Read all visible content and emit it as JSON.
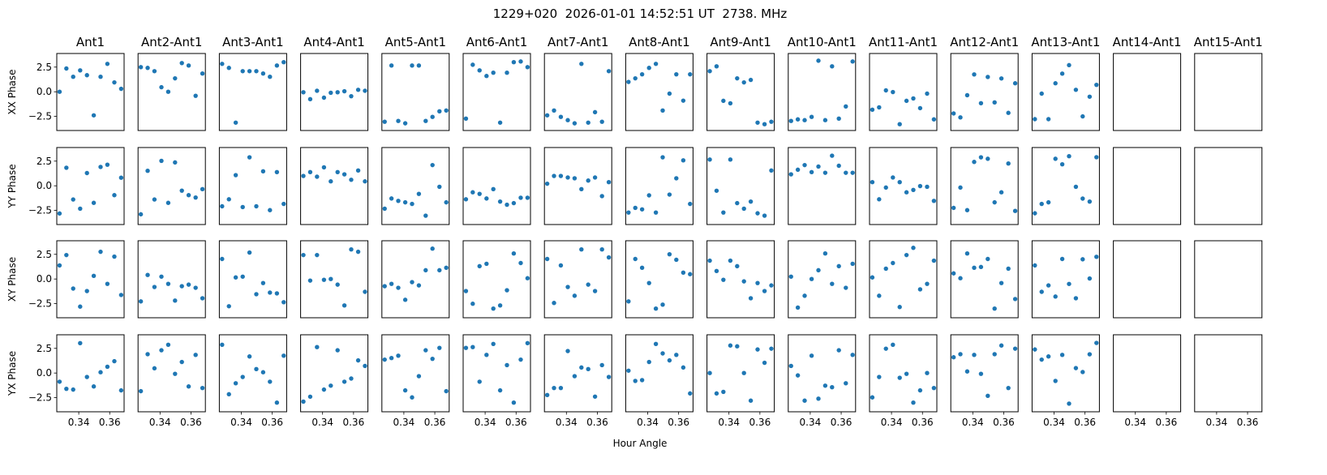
{
  "chart_data": {
    "type": "scatter",
    "title": "1229+020  2026-01-01 14:52:51 UT  2738. MHz",
    "xlabel": "Hour Angle",
    "columns": [
      "Ant1",
      "Ant2-Ant1",
      "Ant3-Ant1",
      "Ant4-Ant1",
      "Ant5-Ant1",
      "Ant6-Ant1",
      "Ant7-Ant1",
      "Ant8-Ant1",
      "Ant9-Ant1",
      "Ant10-Ant1",
      "Ant11-Ant1",
      "Ant12-Ant1",
      "Ant13-Ant1",
      "Ant14-Ant1",
      "Ant15-Ant1"
    ],
    "rows": [
      "XX",
      "YY",
      "XY",
      "YX"
    ],
    "ylabels": [
      "XX Phase",
      "YY Phase",
      "XY Phase",
      "YX Phase"
    ],
    "xlim": [
      0.3258,
      0.3693
    ],
    "ylim": [
      -3.93,
      3.88
    ],
    "xticks": [
      0.34,
      0.36
    ],
    "xtick_labels": [
      "0.34",
      "0.36"
    ],
    "yticks": [
      2.5,
      0.0,
      -2.5
    ],
    "ytick_labels": [
      "2.5",
      "0.0",
      "−2.5"
    ],
    "marker_color": "#1f77b4",
    "x": [
      0.3276,
      0.332,
      0.3364,
      0.3409,
      0.3453,
      0.3497,
      0.3541,
      0.3585,
      0.363,
      0.3674
    ],
    "series": {
      "XX": [
        [
          0.0,
          2.36,
          1.52,
          2.17,
          1.68,
          -2.39,
          1.52,
          2.83,
          0.95,
          0.3
        ],
        [
          2.5,
          2.42,
          2.09,
          0.46,
          0.0,
          1.36,
          2.91,
          2.66,
          -0.41,
          1.85
        ],
        [
          2.83,
          2.42,
          -3.13,
          2.09,
          2.09,
          2.09,
          1.85,
          1.52,
          2.66,
          3.0
        ],
        [
          -0.05,
          -0.75,
          0.1,
          -0.6,
          -0.1,
          -0.05,
          0.05,
          -0.45,
          0.2,
          0.1
        ],
        [
          -3.04,
          2.66,
          -2.96,
          -3.2,
          2.66,
          2.66,
          -2.96,
          -2.55,
          -1.98,
          -1.9
        ],
        [
          -2.72,
          2.74,
          2.17,
          1.6,
          1.93,
          -3.13,
          1.93,
          3.0,
          3.07,
          2.5
        ],
        [
          -2.39,
          -1.9,
          -2.55,
          -2.88,
          -3.2,
          2.83,
          -3.13,
          -2.07,
          -3.04,
          2.09
        ],
        [
          1.0,
          1.36,
          1.77,
          2.42,
          2.83,
          -1.9,
          -0.19,
          1.77,
          -0.9,
          1.77
        ],
        [
          2.09,
          2.58,
          -0.92,
          -1.17,
          1.36,
          0.95,
          1.2,
          -3.13,
          -3.29,
          -3.04
        ],
        [
          -2.96,
          -2.8,
          -2.88,
          -2.55,
          3.15,
          -2.88,
          2.58,
          -2.72,
          -1.49,
          3.07
        ],
        [
          -1.82,
          -1.58,
          0.14,
          -0.03,
          -3.29,
          -0.92,
          -0.68,
          -1.66,
          -0.19,
          -2.8
        ],
        [
          -2.2,
          -2.6,
          -0.35,
          1.76,
          -1.16,
          1.5,
          -1.08,
          1.35,
          -2.14,
          0.86
        ],
        [
          -2.78,
          -0.19,
          -2.78,
          0.86,
          1.84,
          2.7,
          0.2,
          -2.5,
          -0.5,
          0.7
        ],
        [],
        []
      ],
      "YY": [
        [
          -2.81,
          1.83,
          -1.39,
          -2.32,
          1.29,
          -1.73,
          1.91,
          2.14,
          -0.95,
          0.82
        ],
        [
          -2.89,
          1.52,
          -1.39,
          2.53,
          -1.73,
          2.37,
          -0.49,
          -0.95,
          -1.19,
          -0.34
        ],
        [
          -2.08,
          -1.37,
          1.08,
          -2.16,
          2.89,
          -2.08,
          1.47,
          -2.47,
          1.39,
          -1.84
        ],
        [
          1.0,
          1.39,
          0.92,
          1.87,
          0.45,
          1.39,
          1.16,
          0.61,
          1.55,
          0.45
        ],
        [
          -2.32,
          -1.29,
          -1.53,
          -1.68,
          -1.84,
          -0.82,
          -3.03,
          2.1,
          -0.1,
          -1.68
        ],
        [
          -1.37,
          -0.66,
          -0.82,
          -1.29,
          -0.34,
          -1.6,
          -1.92,
          -1.76,
          -1.21,
          -1.21
        ],
        [
          0.21,
          1.0,
          1.0,
          0.84,
          0.76,
          -0.34,
          0.53,
          0.84,
          -1.05,
          0.37
        ],
        [
          -2.71,
          -2.24,
          -2.39,
          -0.97,
          -2.71,
          2.89,
          -0.89,
          0.76,
          2.58,
          -1.84
        ],
        [
          2.66,
          -0.5,
          -2.71,
          2.66,
          -1.76,
          -2.32,
          -1.6,
          -2.79,
          -3.03,
          1.55
        ],
        [
          1.16,
          1.63,
          2.1,
          1.39,
          1.95,
          1.32,
          3.05,
          2.03,
          1.32,
          1.32
        ],
        [
          0.37,
          -1.37,
          -0.18,
          0.84,
          0.37,
          -0.66,
          -0.42,
          -0.03,
          -0.1,
          -1.53
        ],
        [
          -2.24,
          -0.18,
          -2.47,
          2.42,
          2.89,
          2.74,
          -1.68,
          -0.66,
          2.26,
          -2.55
        ],
        [
          -2.79,
          -1.84,
          -1.68,
          2.74,
          2.18,
          3.0,
          -0.1,
          -1.3,
          -1.6,
          2.9
        ],
        [],
        []
      ],
      "XY": [
        [
          1.38,
          2.43,
          -0.97,
          -2.8,
          -1.22,
          0.32,
          2.76,
          -0.49,
          2.27,
          -1.62
        ],
        [
          -2.27,
          0.41,
          -0.81,
          0.24,
          -0.49,
          -2.19,
          -0.73,
          -0.57,
          -0.89,
          -1.95
        ],
        [
          2.03,
          -2.76,
          0.16,
          0.24,
          2.68,
          -1.54,
          -0.41,
          -1.38,
          -1.46,
          -2.35
        ],
        [
          2.43,
          -0.16,
          2.43,
          -0.08,
          0.0,
          -0.57,
          -2.68,
          3.0,
          2.76,
          -1.3
        ],
        [
          -0.73,
          -0.49,
          -0.89,
          -2.11,
          -0.32,
          -0.65,
          0.89,
          3.08,
          0.89,
          1.14
        ],
        [
          -1.22,
          -2.51,
          1.3,
          1.54,
          -3.0,
          -2.68,
          -1.14,
          2.59,
          1.62,
          0.08
        ],
        [
          2.03,
          -2.43,
          1.38,
          -0.81,
          -1.7,
          3.0,
          -0.57,
          -1.22,
          3.0,
          2.19
        ],
        [
          -2.27,
          2.03,
          1.14,
          -0.41,
          -3.0,
          -2.6,
          2.51,
          1.95,
          0.65,
          0.49
        ],
        [
          1.86,
          0.81,
          -0.08,
          1.86,
          1.3,
          -0.24,
          -1.95,
          -0.41,
          -1.22,
          -0.65
        ],
        [
          0.24,
          -2.9,
          -1.7,
          0.0,
          0.89,
          2.59,
          -0.49,
          1.3,
          -0.89,
          1.54
        ],
        [
          0.16,
          -1.7,
          1.05,
          1.62,
          -2.84,
          2.43,
          3.16,
          -1.05,
          -0.49,
          1.86
        ],
        [
          0.57,
          0.08,
          2.59,
          1.14,
          1.22,
          2.03,
          -3.0,
          -0.41,
          1.05,
          -2.03
        ],
        [
          1.38,
          -1.3,
          -0.65,
          -1.78,
          2.03,
          -0.5,
          -1.95,
          2.0,
          0.05,
          2.25
        ],
        [],
        []
      ],
      "YX": [
        [
          -0.88,
          -1.6,
          -1.68,
          3.03,
          -0.4,
          -1.36,
          0.08,
          0.64,
          1.2,
          -1.76
        ],
        [
          -1.84,
          1.91,
          0.48,
          2.31,
          2.87,
          -0.08,
          1.12,
          -1.36,
          1.84,
          -1.52
        ],
        [
          2.87,
          -2.15,
          -1.04,
          -0.4,
          1.68,
          0.4,
          0.08,
          -0.88,
          -3.0,
          1.76
        ],
        [
          -2.9,
          -2.4,
          2.63,
          -1.68,
          -1.28,
          2.31,
          -0.88,
          -0.56,
          1.28,
          0.72
        ],
        [
          1.36,
          1.52,
          1.76,
          -1.76,
          -2.47,
          -0.32,
          2.31,
          1.44,
          2.55,
          -1.84
        ],
        [
          2.55,
          2.63,
          -0.88,
          1.84,
          2.95,
          -1.76,
          0.8,
          -3.0,
          1.36,
          3.03
        ],
        [
          -2.23,
          -1.52,
          -1.52,
          2.23,
          -0.32,
          0.56,
          0.4,
          -2.39,
          0.8,
          -0.4
        ],
        [
          0.24,
          -0.8,
          -0.72,
          1.12,
          2.95,
          1.99,
          1.28,
          1.84,
          0.56,
          -2.07
        ],
        [
          0.0,
          -2.07,
          -1.91,
          2.79,
          2.71,
          0.0,
          -2.8,
          2.39,
          1.04,
          2.47
        ],
        [
          0.72,
          -0.24,
          -2.8,
          1.76,
          -2.6,
          -1.28,
          -1.44,
          2.31,
          -1.04,
          1.84
        ],
        [
          -2.47,
          -0.4,
          2.47,
          2.87,
          -0.48,
          -0.08,
          -3.0,
          -1.76,
          0.0,
          -1.52
        ],
        [
          1.6,
          1.91,
          0.16,
          1.84,
          -0.08,
          -2.31,
          1.91,
          2.79,
          -1.52,
          2.47
        ],
        [
          2.39,
          1.36,
          1.68,
          -0.8,
          1.84,
          -3.1,
          0.5,
          0.1,
          1.9,
          3.05
        ],
        [],
        []
      ]
    }
  }
}
